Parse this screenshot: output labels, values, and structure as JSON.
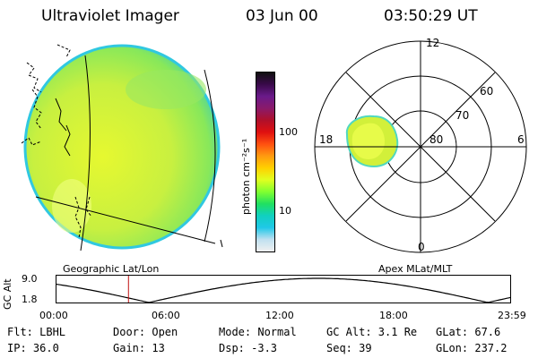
{
  "header": {
    "title": "Ultraviolet Imager",
    "date": "03 Jun 00",
    "time": "03:50:29 UT"
  },
  "colorbar": {
    "label": "photon cm⁻²s⁻¹",
    "ticks": [
      "100",
      "10"
    ],
    "colors": [
      "#101010",
      "#3a0a4a",
      "#6a1a8a",
      "#8a1a6a",
      "#b0102a",
      "#e01010",
      "#ff5010",
      "#ff9a10",
      "#ffd000",
      "#e0ff20",
      "#80ff30",
      "#20e060",
      "#10d0c0",
      "#20c8e8",
      "#c0e0f0",
      "#f0f0f0"
    ]
  },
  "left_panel": {
    "caption": "Geographic Lat/Lon"
  },
  "right_panel": {
    "caption": "Apex MLat/MLT",
    "mlt_labels": [
      "12",
      "18",
      "6",
      "0"
    ],
    "lat_labels": [
      "60",
      "70",
      "80"
    ]
  },
  "timeline": {
    "ylabel": "GC Alt",
    "y_ticks": [
      "9.0",
      "1.8"
    ],
    "x_ticks": [
      "00:00",
      "06:00",
      "12:00",
      "18:00",
      "23:59"
    ],
    "current_time_hours": 3.84
  },
  "info": {
    "flt": "Flt: LBHL",
    "door": "Door: Open",
    "mode": "Mode: Normal",
    "gc_alt": "GC Alt: 3.1 Re",
    "glat": "GLat:  67.6",
    "ip": "IP: 36.0",
    "gain": "Gain: 13",
    "dsp": "Dsp:    -3.3",
    "seq": "Seq: 39",
    "glon": "GLon: 237.2"
  }
}
